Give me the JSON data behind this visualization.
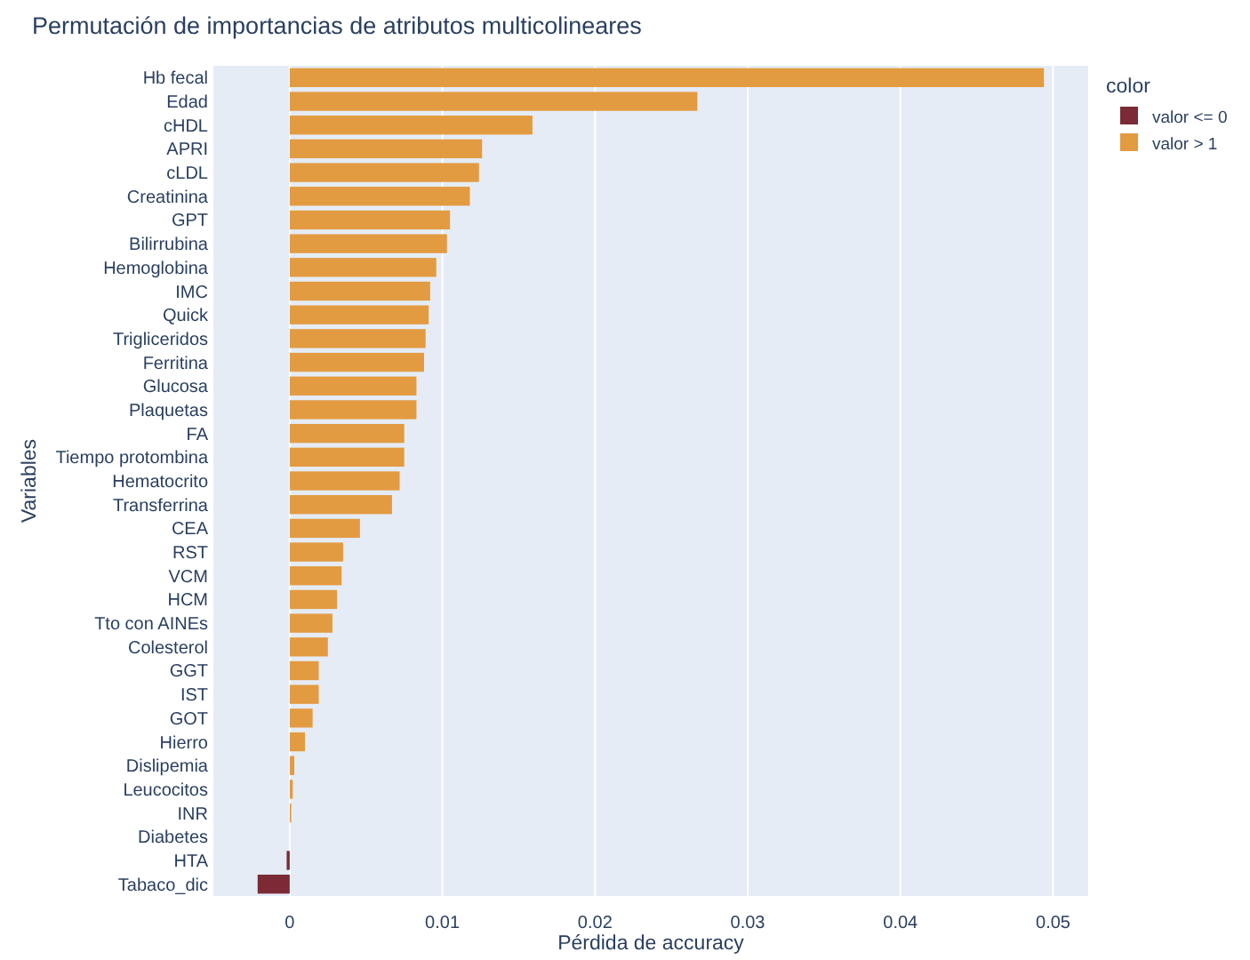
{
  "chart_data": {
    "type": "bar",
    "orientation": "horizontal",
    "title": "Permutación de importancias de atributos multicolineares",
    "xlabel": "Pérdida de accuracy",
    "ylabel": "Variables",
    "legend_title": "color",
    "legend": "top right",
    "grid": "x",
    "categories": [
      "Hb fecal",
      "Edad",
      "cHDL",
      "APRI",
      "cLDL",
      "Creatinina",
      "GPT",
      "Bilirrubina",
      "Hemoglobina",
      "IMC",
      "Quick",
      "Trigliceridos",
      "Ferritina",
      "Glucosa",
      "Plaquetas",
      "FA",
      "Tiempo protombina",
      "Hematocrito",
      "Transferrina",
      "CEA",
      "RST",
      "VCM",
      "HCM",
      "Tto con AINEs",
      "Colesterol",
      "GGT",
      "IST",
      "GOT",
      "Hierro",
      "Dislipemia",
      "Leucocitos",
      "INR",
      "Diabetes",
      "HTA",
      "Tabaco_dic"
    ],
    "series": [
      {
        "name": "valor <= 0",
        "color": "#7b2a36",
        "values": [
          null,
          null,
          null,
          null,
          null,
          null,
          null,
          null,
          null,
          null,
          null,
          null,
          null,
          null,
          null,
          null,
          null,
          null,
          null,
          null,
          null,
          null,
          null,
          null,
          null,
          null,
          null,
          null,
          null,
          null,
          null,
          null,
          0,
          -0.0002,
          -0.0021
        ]
      },
      {
        "name": "valor > 1",
        "color": "#e39b42",
        "values": [
          0.0494,
          0.0267,
          0.0159,
          0.0126,
          0.0124,
          0.0118,
          0.0105,
          0.0103,
          0.0096,
          0.0092,
          0.0091,
          0.0089,
          0.0088,
          0.0083,
          0.0083,
          0.0075,
          0.0075,
          0.0072,
          0.0067,
          0.0046,
          0.0035,
          0.0034,
          0.0031,
          0.0028,
          0.0025,
          0.0019,
          0.0019,
          0.0015,
          0.001,
          0.0003,
          0.0002,
          0.0001,
          null,
          null,
          null
        ]
      }
    ],
    "xlim": [
      -0.005,
      0.0523
    ],
    "xticks": [
      0,
      0.01,
      0.02,
      0.03,
      0.04,
      0.05
    ]
  }
}
